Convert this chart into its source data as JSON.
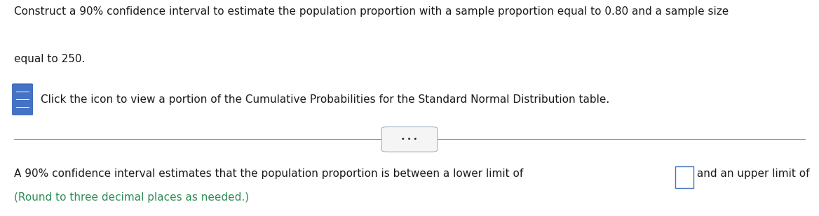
{
  "bg_color": "#ffffff",
  "text_color_dark": "#1a1a1a",
  "text_color_teal": "#2e8b57",
  "line_color": "#8899aa",
  "line1_text": "Construct a 90% confidence interval to estimate the population proportion with a sample proportion equal to 0.80 and a sample size",
  "line2_text": "equal to 250.",
  "icon_text": "Click the icon to view a portion of the Cumulative Probabilities for the Standard Normal Distribution table.",
  "seg1": "A 90% confidence interval estimates that the population proportion is between a lower limit of ",
  "seg2": " and an upper limit of ",
  "seg3": ".",
  "bottom_line2": "(Round to three decimal places as needed.)",
  "dots_text": "• • •",
  "fig_width": 11.68,
  "fig_height": 3.09,
  "dpi": 100
}
